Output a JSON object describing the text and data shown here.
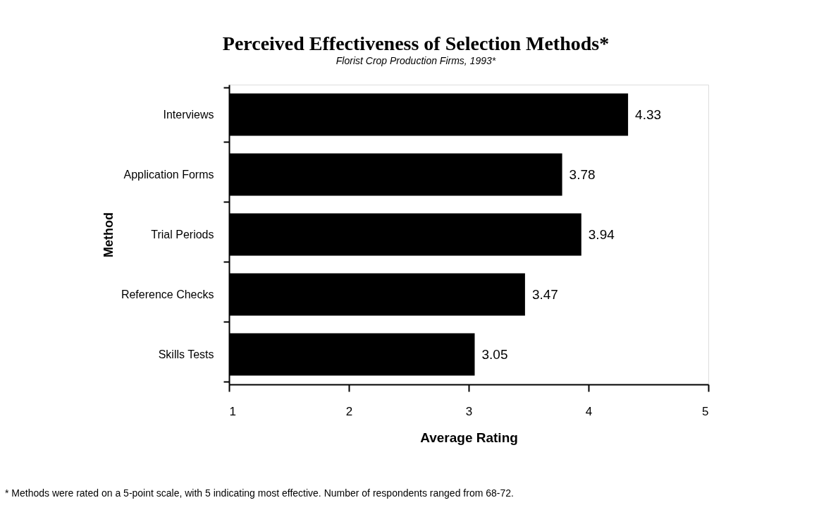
{
  "chart_data": {
    "type": "bar",
    "orientation": "horizontal",
    "title": "Perceived Effectiveness of Selection Methods*",
    "subtitle": "Florist Crop Production Firms, 1993*",
    "xlabel": "Average Rating",
    "ylabel": "Method",
    "categories": [
      "Interviews",
      "Application Forms",
      "Trial Periods",
      "Reference Checks",
      "Skills Tests"
    ],
    "values": [
      4.33,
      3.78,
      3.94,
      3.47,
      3.05
    ],
    "color": "#000000",
    "xlim": [
      1,
      5
    ],
    "xticks": [
      1,
      2,
      3,
      4,
      5
    ],
    "grid": false,
    "legend": false,
    "data_labels": true,
    "annotations": [
      "* Methods were rated on a 5-point scale, with 5 indicating most effective. Number of respondents ranged from 68-72."
    ]
  }
}
